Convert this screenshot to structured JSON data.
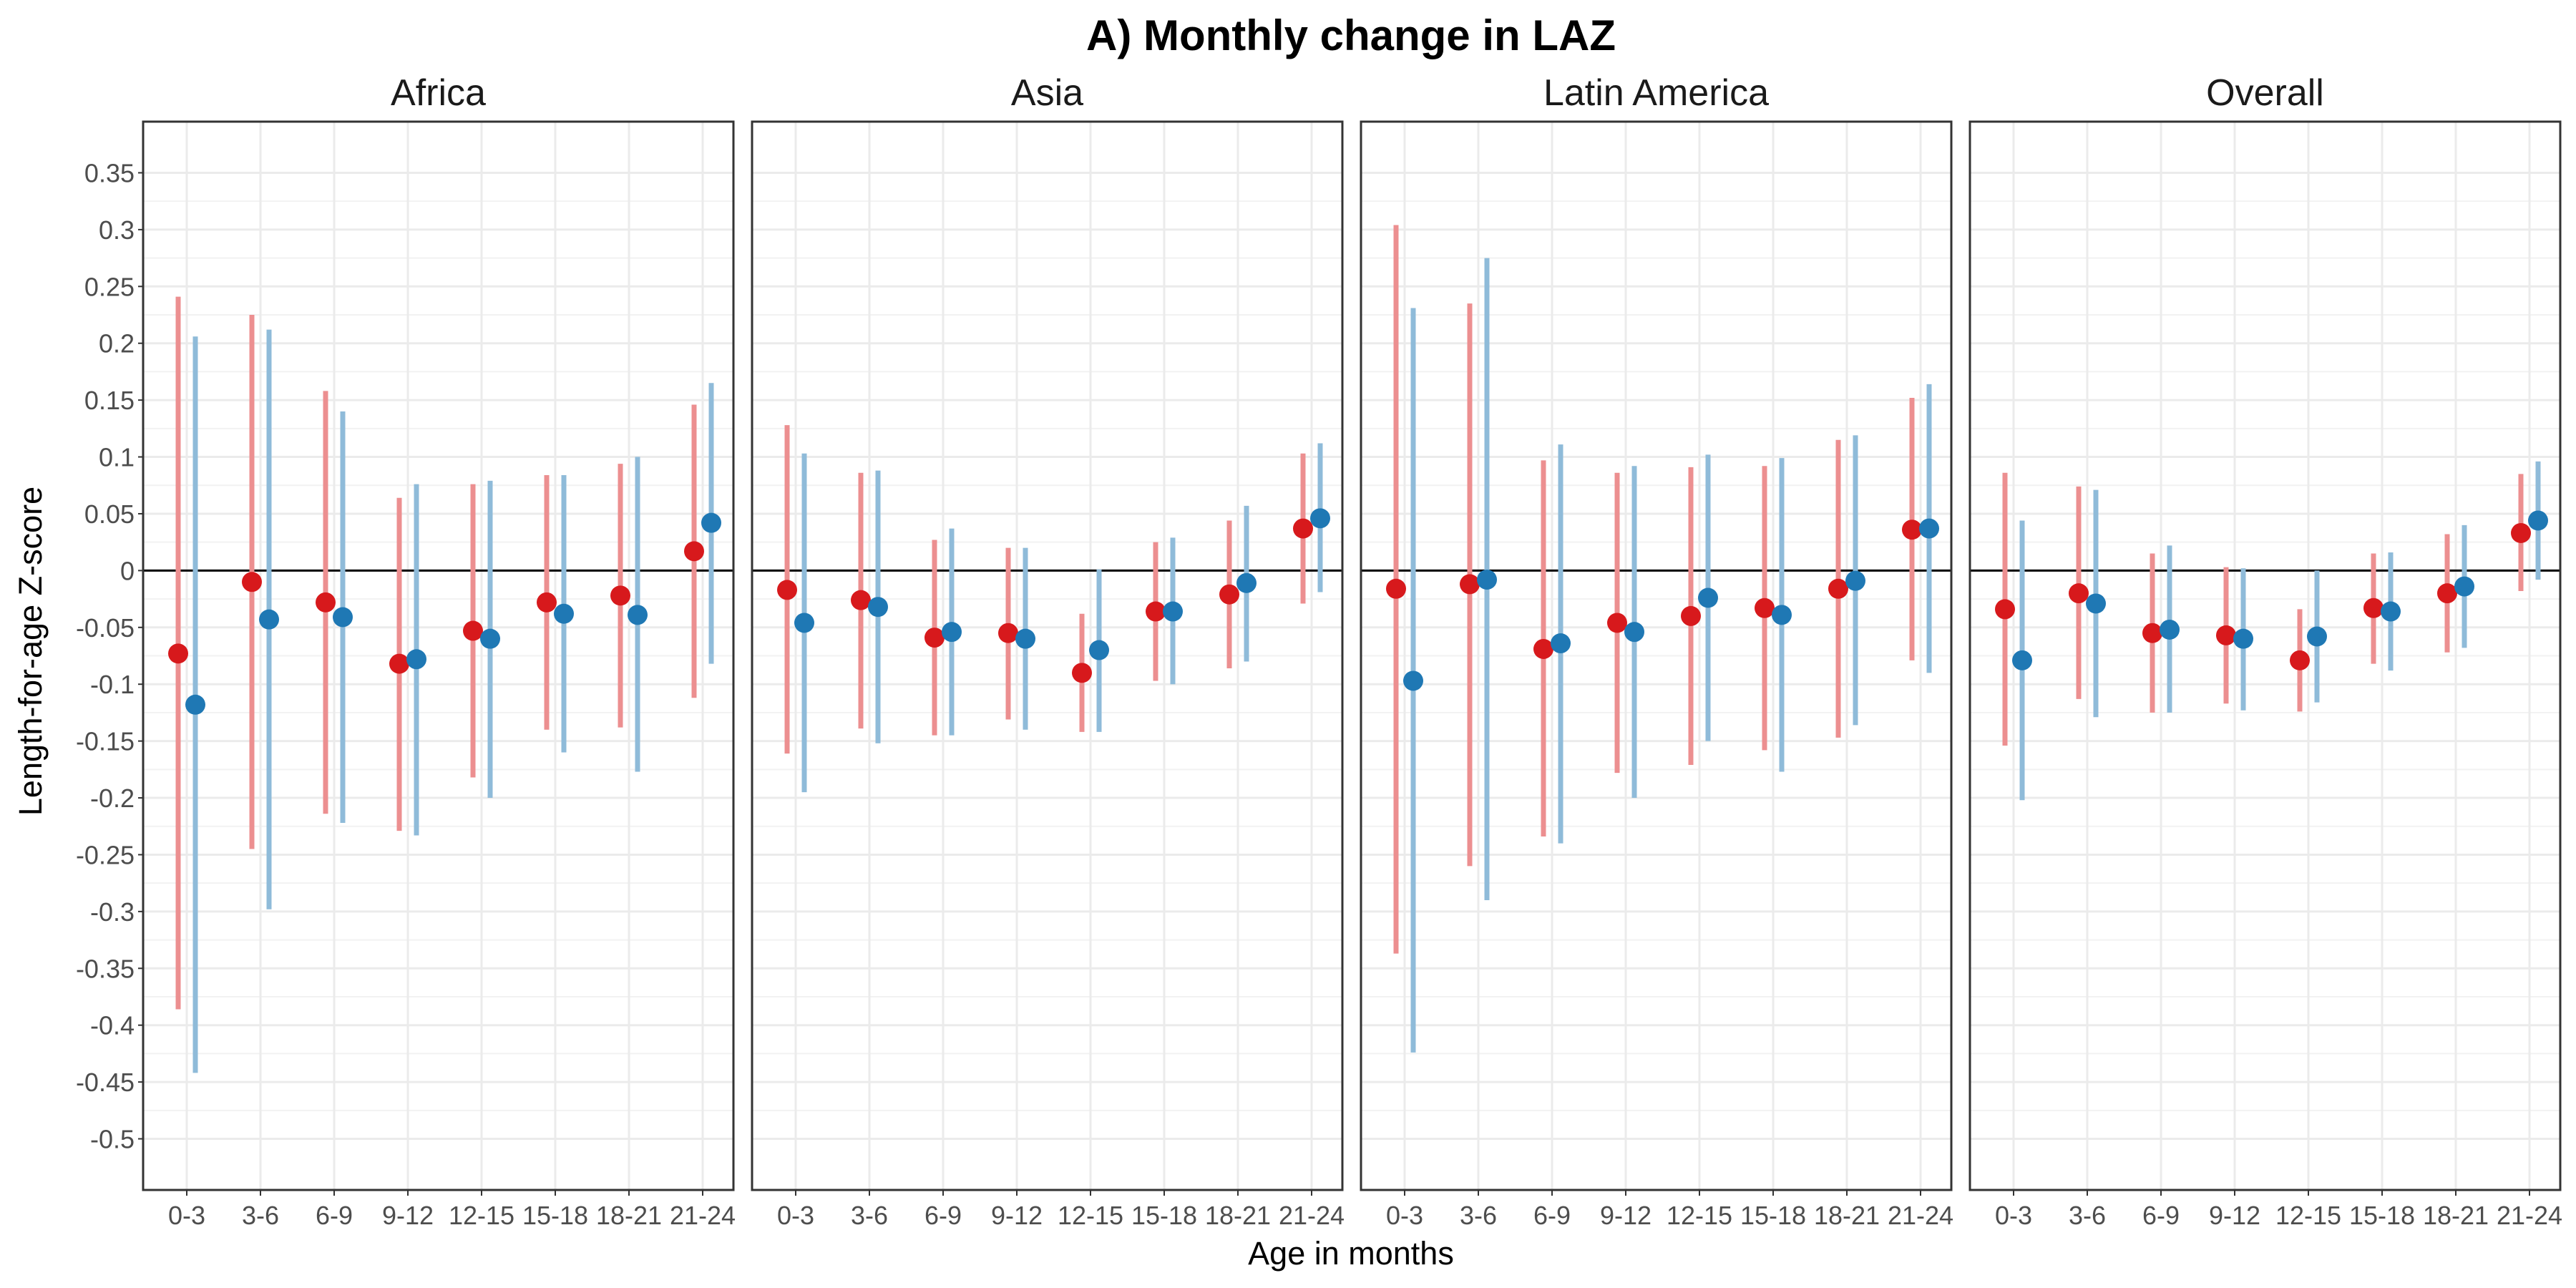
{
  "chart_data": {
    "type": "scatter",
    "title": "A) Monthly change in LAZ",
    "xlabel": "Age in months",
    "ylabel": "Length-for-age Z-score",
    "categories": [
      "0-3",
      "3-6",
      "6-9",
      "9-12",
      "12-15",
      "15-18",
      "18-21",
      "21-24"
    ],
    "ylim": [
      -0.545,
      0.395
    ],
    "y_ticks": [
      0.35,
      0.3,
      0.25,
      0.2,
      0.15,
      0.1,
      0.05,
      0,
      -0.05,
      -0.1,
      -0.15,
      -0.2,
      -0.25,
      -0.3,
      -0.35,
      -0.4,
      -0.45,
      -0.5
    ],
    "y_tick_labels": [
      "0.35",
      "0.3",
      "0.25",
      "0.2",
      "0.15",
      "0.1",
      "0.05",
      "0",
      "-0.05",
      "-0.1",
      "-0.15",
      "-0.2",
      "-0.25",
      "-0.3",
      "-0.35",
      "-0.4",
      "-0.45",
      "-0.5"
    ],
    "reference_line": 0,
    "grid": true,
    "series_colors": {
      "red": {
        "point": "#d7191c",
        "bar": "#ec8f90"
      },
      "blue": {
        "point": "#1f78b4",
        "bar": "#8fbbd9"
      }
    },
    "panels": [
      {
        "label": "Africa",
        "series": [
          {
            "color": "red",
            "points": [
              {
                "y": -0.073,
                "lo": -0.386,
                "hi": 0.241
              },
              {
                "y": -0.01,
                "lo": -0.245,
                "hi": 0.225
              },
              {
                "y": -0.028,
                "lo": -0.214,
                "hi": 0.158
              },
              {
                "y": -0.082,
                "lo": -0.229,
                "hi": 0.064
              },
              {
                "y": -0.053,
                "lo": -0.182,
                "hi": 0.076
              },
              {
                "y": -0.028,
                "lo": -0.14,
                "hi": 0.084
              },
              {
                "y": -0.022,
                "lo": -0.138,
                "hi": 0.094
              },
              {
                "y": 0.017,
                "lo": -0.112,
                "hi": 0.146
              }
            ]
          },
          {
            "color": "blue",
            "points": [
              {
                "y": -0.118,
                "lo": -0.442,
                "hi": 0.206
              },
              {
                "y": -0.043,
                "lo": -0.298,
                "hi": 0.212
              },
              {
                "y": -0.041,
                "lo": -0.222,
                "hi": 0.14
              },
              {
                "y": -0.078,
                "lo": -0.233,
                "hi": 0.076
              },
              {
                "y": -0.06,
                "lo": -0.2,
                "hi": 0.079
              },
              {
                "y": -0.038,
                "lo": -0.16,
                "hi": 0.084
              },
              {
                "y": -0.039,
                "lo": -0.177,
                "hi": 0.1
              },
              {
                "y": 0.042,
                "lo": -0.082,
                "hi": 0.165
              }
            ]
          }
        ]
      },
      {
        "label": "Asia",
        "series": [
          {
            "color": "red",
            "points": [
              {
                "y": -0.017,
                "lo": -0.161,
                "hi": 0.128
              },
              {
                "y": -0.026,
                "lo": -0.139,
                "hi": 0.086
              },
              {
                "y": -0.059,
                "lo": -0.145,
                "hi": 0.027
              },
              {
                "y": -0.055,
                "lo": -0.131,
                "hi": 0.02
              },
              {
                "y": -0.09,
                "lo": -0.142,
                "hi": -0.038
              },
              {
                "y": -0.036,
                "lo": -0.097,
                "hi": 0.025
              },
              {
                "y": -0.021,
                "lo": -0.086,
                "hi": 0.044
              },
              {
                "y": 0.037,
                "lo": -0.029,
                "hi": 0.103
              }
            ]
          },
          {
            "color": "blue",
            "points": [
              {
                "y": -0.046,
                "lo": -0.195,
                "hi": 0.103
              },
              {
                "y": -0.032,
                "lo": -0.152,
                "hi": 0.088
              },
              {
                "y": -0.054,
                "lo": -0.145,
                "hi": 0.037
              },
              {
                "y": -0.06,
                "lo": -0.14,
                "hi": 0.02
              },
              {
                "y": -0.07,
                "lo": -0.142,
                "hi": 0.001
              },
              {
                "y": -0.036,
                "lo": -0.1,
                "hi": 0.029
              },
              {
                "y": -0.011,
                "lo": -0.08,
                "hi": 0.057
              },
              {
                "y": 0.046,
                "lo": -0.019,
                "hi": 0.112
              }
            ]
          }
        ]
      },
      {
        "label": "Latin America",
        "series": [
          {
            "color": "red",
            "points": [
              {
                "y": -0.016,
                "lo": -0.337,
                "hi": 0.304
              },
              {
                "y": -0.012,
                "lo": -0.26,
                "hi": 0.235
              },
              {
                "y": -0.069,
                "lo": -0.234,
                "hi": 0.097
              },
              {
                "y": -0.046,
                "lo": -0.178,
                "hi": 0.086
              },
              {
                "y": -0.04,
                "lo": -0.171,
                "hi": 0.091
              },
              {
                "y": -0.033,
                "lo": -0.158,
                "hi": 0.092
              },
              {
                "y": -0.016,
                "lo": -0.147,
                "hi": 0.115
              },
              {
                "y": 0.036,
                "lo": -0.079,
                "hi": 0.152
              }
            ]
          },
          {
            "color": "blue",
            "points": [
              {
                "y": -0.097,
                "lo": -0.424,
                "hi": 0.231
              },
              {
                "y": -0.008,
                "lo": -0.29,
                "hi": 0.275
              },
              {
                "y": -0.064,
                "lo": -0.24,
                "hi": 0.111
              },
              {
                "y": -0.054,
                "lo": -0.2,
                "hi": 0.092
              },
              {
                "y": -0.024,
                "lo": -0.15,
                "hi": 0.102
              },
              {
                "y": -0.039,
                "lo": -0.177,
                "hi": 0.099
              },
              {
                "y": -0.009,
                "lo": -0.136,
                "hi": 0.119
              },
              {
                "y": 0.037,
                "lo": -0.09,
                "hi": 0.164
              }
            ]
          }
        ]
      },
      {
        "label": "Overall",
        "series": [
          {
            "color": "red",
            "points": [
              {
                "y": -0.034,
                "lo": -0.154,
                "hi": 0.086
              },
              {
                "y": -0.02,
                "lo": -0.113,
                "hi": 0.074
              },
              {
                "y": -0.055,
                "lo": -0.125,
                "hi": 0.015
              },
              {
                "y": -0.057,
                "lo": -0.117,
                "hi": 0.003
              },
              {
                "y": -0.079,
                "lo": -0.124,
                "hi": -0.034
              },
              {
                "y": -0.033,
                "lo": -0.082,
                "hi": 0.015
              },
              {
                "y": -0.02,
                "lo": -0.072,
                "hi": 0.032
              },
              {
                "y": 0.033,
                "lo": -0.018,
                "hi": 0.085
              }
            ]
          },
          {
            "color": "blue",
            "points": [
              {
                "y": -0.079,
                "lo": -0.202,
                "hi": 0.044
              },
              {
                "y": -0.029,
                "lo": -0.129,
                "hi": 0.071
              },
              {
                "y": -0.052,
                "lo": -0.125,
                "hi": 0.022
              },
              {
                "y": -0.06,
                "lo": -0.123,
                "hi": 0.002
              },
              {
                "y": -0.058,
                "lo": -0.116,
                "hi": 0.0
              },
              {
                "y": -0.036,
                "lo": -0.088,
                "hi": 0.016
              },
              {
                "y": -0.014,
                "lo": -0.068,
                "hi": 0.04
              },
              {
                "y": 0.044,
                "lo": -0.008,
                "hi": 0.096
              }
            ]
          }
        ]
      }
    ]
  }
}
